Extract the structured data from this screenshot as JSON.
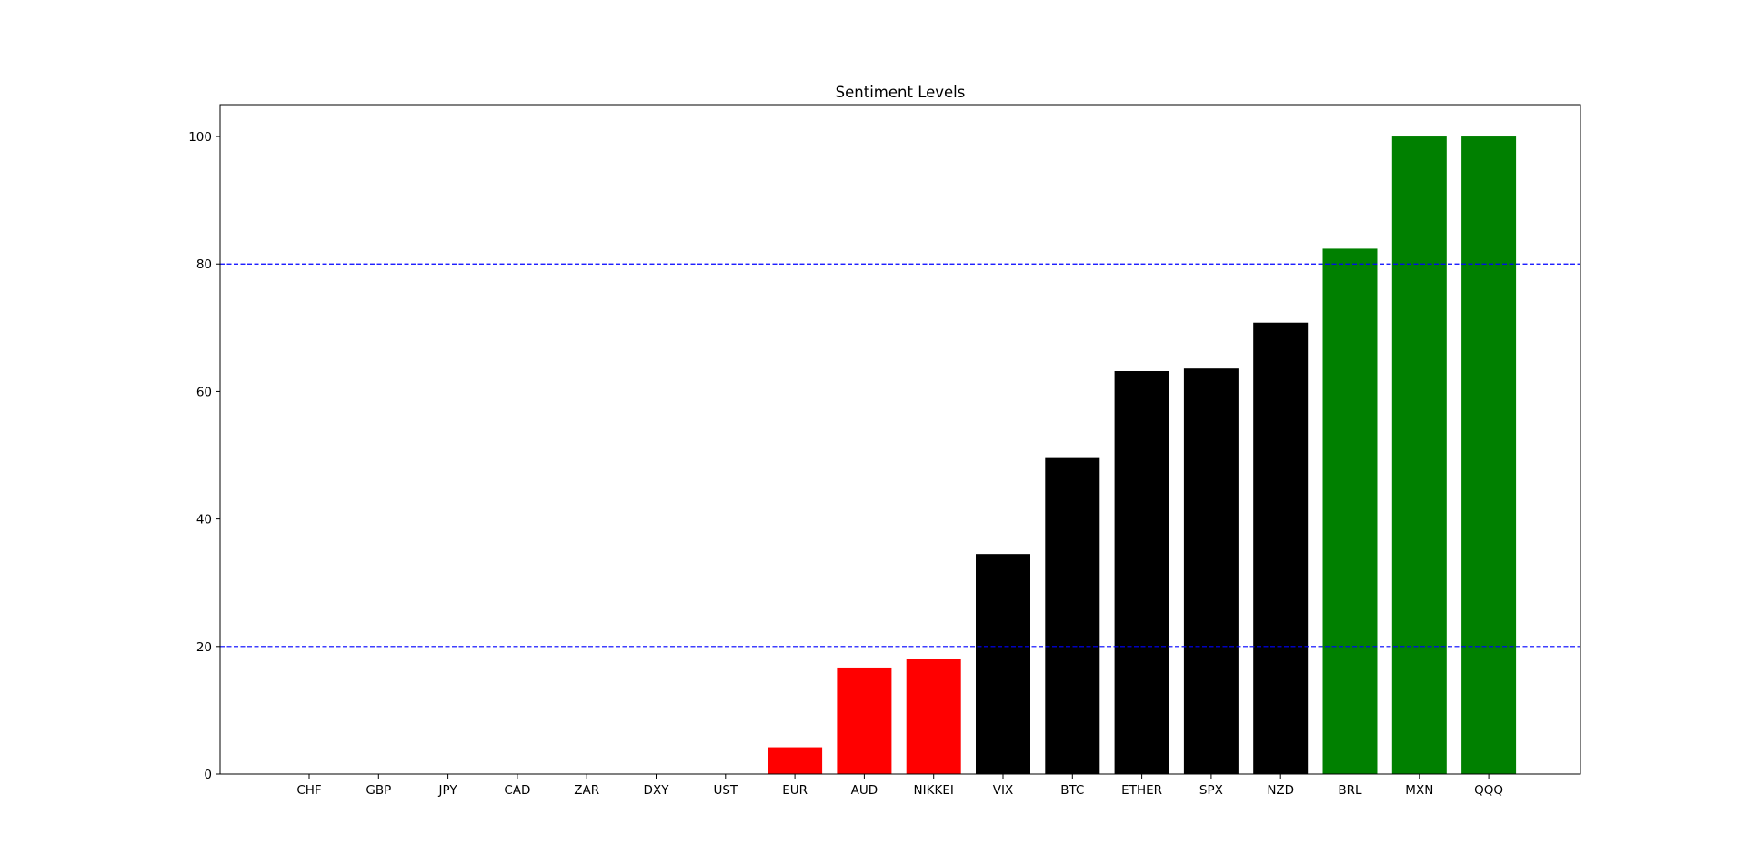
{
  "chart_data": {
    "type": "bar",
    "title": "Sentiment Levels",
    "xlabel": "",
    "ylabel": "",
    "categories": [
      "CHF",
      "GBP",
      "JPY",
      "CAD",
      "ZAR",
      "DXY",
      "UST",
      "EUR",
      "AUD",
      "NIKKEI",
      "VIX",
      "BTC",
      "ETHER",
      "SPX",
      "NZD",
      "BRL",
      "MXN",
      "QQQ"
    ],
    "values": [
      0,
      0,
      0,
      0,
      0,
      0,
      0,
      4.2,
      16.7,
      18.0,
      34.5,
      49.7,
      63.2,
      63.6,
      70.8,
      82.4,
      100,
      100
    ],
    "bar_colors": [
      "#ff0000",
      "#ff0000",
      "#ff0000",
      "#ff0000",
      "#ff0000",
      "#ff0000",
      "#ff0000",
      "#ff0000",
      "#ff0000",
      "#ff0000",
      "#000000",
      "#000000",
      "#000000",
      "#000000",
      "#000000",
      "#008000",
      "#008000",
      "#008000"
    ],
    "ylim": [
      0,
      105
    ],
    "yticks": [
      0,
      20,
      40,
      60,
      80,
      100
    ],
    "reference_lines": [
      {
        "y": 20,
        "color": "#0000ff",
        "style": "dashed"
      },
      {
        "y": 80,
        "color": "#0000ff",
        "style": "dashed"
      }
    ],
    "grid": false
  }
}
